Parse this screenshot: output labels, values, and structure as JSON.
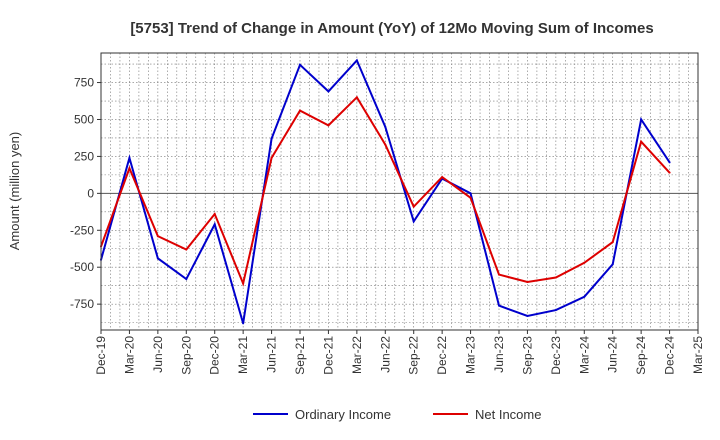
{
  "chart_data": {
    "type": "line",
    "title": "[5753]  Trend of Change in Amount (YoY) of 12Mo Moving Sum of Incomes",
    "xlabel": "",
    "ylabel": "Amount (million yen)",
    "categories": [
      "Dec-19",
      "Mar-20",
      "Jun-20",
      "Sep-20",
      "Dec-20",
      "Mar-21",
      "Jun-21",
      "Sep-21",
      "Dec-21",
      "Mar-22",
      "Jun-22",
      "Sep-22",
      "Dec-22",
      "Mar-23",
      "Jun-23",
      "Sep-23",
      "Dec-23",
      "Mar-24",
      "Jun-24",
      "Sep-24",
      "Dec-24",
      "Mar-25"
    ],
    "ylim": [
      -925,
      950
    ],
    "yticks": [
      -750,
      -500,
      -250,
      0,
      250,
      500,
      750
    ],
    "ytick_labels": [
      "-750",
      "-500",
      "-250",
      "0",
      "250",
      "500",
      "750"
    ],
    "grid": true,
    "legend_position": "bottom",
    "series": [
      {
        "name": "Ordinary Income",
        "color": "#0000cc",
        "values": [
          -450,
          240,
          -440,
          -580,
          -210,
          -880,
          370,
          870,
          690,
          900,
          450,
          -190,
          100,
          0,
          -760,
          -830,
          -790,
          -700,
          -480,
          500,
          210,
          null
        ]
      },
      {
        "name": "Net Income",
        "color": "#dd0000",
        "values": [
          -360,
          170,
          -290,
          -380,
          -140,
          -610,
          240,
          560,
          460,
          650,
          330,
          -90,
          110,
          -30,
          -550,
          -600,
          -570,
          -470,
          -330,
          350,
          140,
          null
        ]
      }
    ]
  }
}
